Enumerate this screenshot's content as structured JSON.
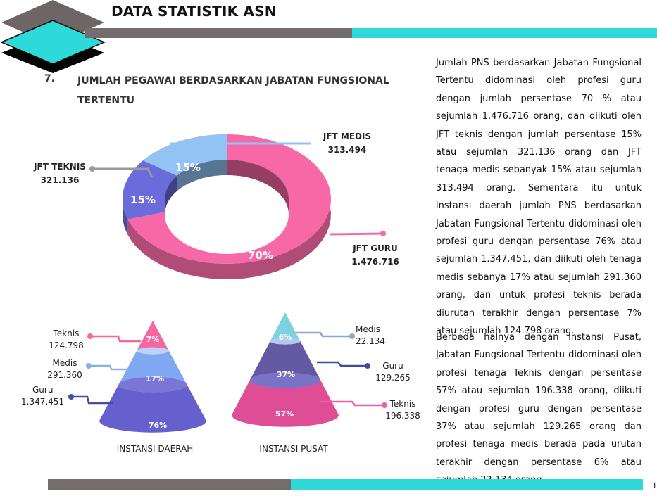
{
  "header": {
    "title": "DATA STATISTIK ASN",
    "colors": {
      "gray": "#756c6d",
      "cyan": "#2ed9d9",
      "logo_cyan": "#2ed9d9",
      "logo_gray": "#6e6566"
    }
  },
  "section": {
    "number": "7.",
    "title": "JUMLAH PEGAWAI BERDASARKAN JABATAN FUNGSIONAL TERTENTU"
  },
  "paragraphs": [
    "Jumlah PNS berdasarkan Jabatan Fungsional Tertentu didominasi oleh profesi guru dengan jumlah persentase 70 % atau sejumlah 1.476.716 orang, dan diikuti oleh JFT teknis dengan jumlah persentase 15% atau sejumlah 321.136 orang dan JFT tenaga medis sebanyak 15% atau sejumlah 313.494 orang. Sementara itu untuk instansi daerah jumlah PNS berdasarkan Jabatan Fungsional Tertentu didominasi oleh profesi guru dengan persentase 76% atau sejumlah 1.347.451, dan diikuti oleh tenaga medis sebanya 17% atau sejumlah 291.360 orang, dan untuk profesi teknis berada diurutan terakhir dengan persentase 7% atau sejumlah 124.798 orang.",
    "Berbeda halnya dengan Instansi Pusat, Jabatan Fungsional Tertentu didominasi oleh profesi tenaga  Teknis dengan persentase 57% atau sejumlah 196.338 orang, diikuti dengan profesi guru dengan persentase 37% atau sejumlah 129.265 orang dan profesi tenaga medis berada pada urutan terakhir dengan persentase 6% atau sejumlah 22.134 orang."
  ],
  "footer": {
    "page_number": "1"
  },
  "chart_data": [
    {
      "type": "pie",
      "variant": "3d-donut",
      "categories": [
        "JFT GURU",
        "JFT TEKNIS",
        "JFT MEDIS"
      ],
      "values": [
        1476716,
        321136,
        313494
      ],
      "value_labels": [
        "1.476.716",
        "321.136",
        "313.494"
      ],
      "percent_labels": [
        "70%",
        "15%",
        "15%"
      ],
      "percents": [
        70,
        15,
        15
      ],
      "colors": [
        "#f668a6",
        "#6b6bdb",
        "#93c3f5"
      ],
      "legend": "callout-labels"
    },
    {
      "type": "pie",
      "variant": "layered-cone",
      "title": "INSTANSI DAERAH",
      "categories": [
        "Teknis",
        "Medis",
        "Guru"
      ],
      "values": [
        124798,
        291360,
        1347451
      ],
      "value_labels": [
        "124.798",
        "291.360",
        "1.347.451"
      ],
      "percent_labels": [
        "7%",
        "17%",
        "76%"
      ],
      "percents": [
        7,
        17,
        76
      ],
      "colors": [
        "#f6679f",
        "#7fa7f2",
        "#6660cf"
      ]
    },
    {
      "type": "pie",
      "variant": "layered-cone",
      "title": "INSTANSI PUSAT",
      "categories": [
        "Medis",
        "Guru",
        "Teknis"
      ],
      "values": [
        22134,
        129265,
        196338
      ],
      "value_labels": [
        "22.134",
        "129.265",
        "196.338"
      ],
      "percent_labels": [
        "6%",
        "37%",
        "57%"
      ],
      "percents": [
        6,
        37,
        57
      ],
      "colors": [
        "#7cd3e0",
        "#645aa3",
        "#df4d96"
      ]
    }
  ]
}
